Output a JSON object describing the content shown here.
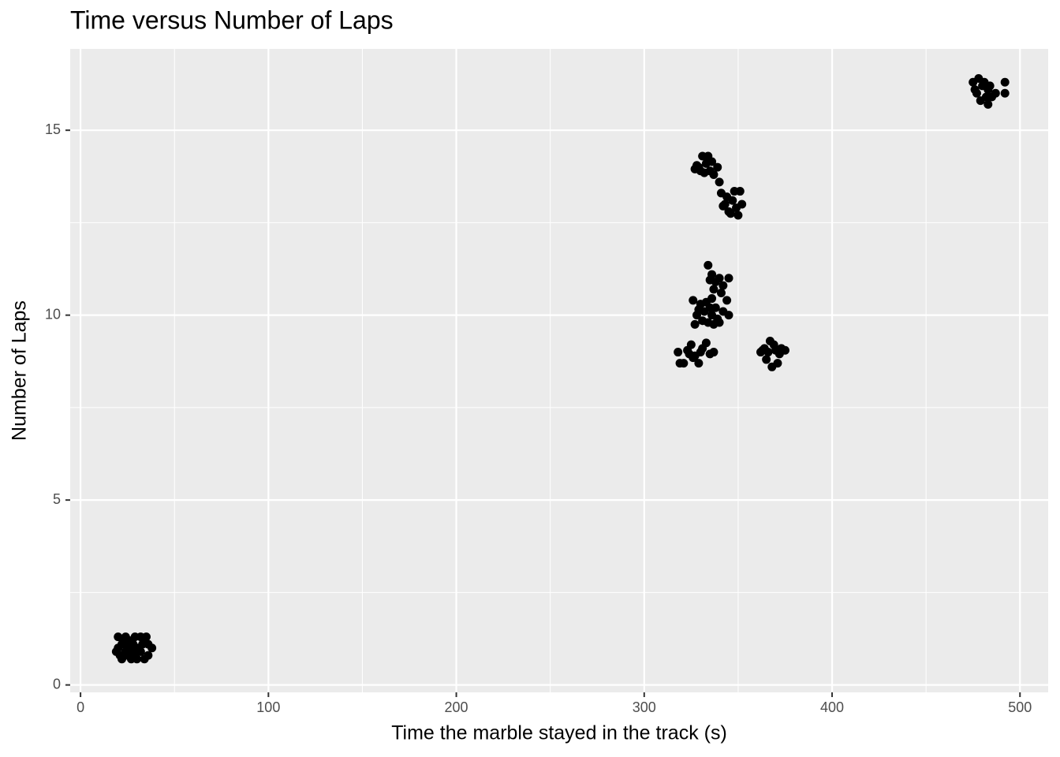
{
  "chart_data": {
    "type": "scatter",
    "title": "Time versus Number of Laps",
    "x_label": "Time the marble stayed in the track (s)",
    "y_label": "Number of Laps",
    "color": "#000000",
    "grid": true,
    "xlim": [
      -5.5,
      515
    ],
    "ylim": [
      -0.2,
      17.2
    ],
    "xticks": [
      0,
      100,
      200,
      300,
      400,
      500
    ],
    "yticks": [
      0,
      5,
      10,
      15
    ],
    "xminor": [
      50,
      150,
      250,
      350,
      450
    ],
    "yminor": [
      2.5,
      7.5,
      12.5
    ],
    "x": [
      20,
      22,
      24,
      26,
      28,
      30,
      32,
      34,
      36,
      38,
      21,
      23,
      25,
      27,
      29,
      31,
      33,
      35,
      20,
      22,
      24,
      26,
      28,
      30,
      32,
      34,
      19,
      36,
      27,
      25,
      475,
      477,
      479,
      481,
      483,
      485,
      483,
      487,
      492,
      492,
      476,
      480,
      482,
      478,
      484,
      327,
      329,
      331,
      333,
      335,
      337,
      339,
      340,
      330,
      334,
      336,
      332,
      328,
      341,
      343,
      345,
      347,
      349,
      351,
      350,
      346,
      344,
      348,
      342,
      352,
      334,
      336,
      338,
      340,
      342,
      345,
      344,
      337,
      335,
      341,
      326,
      328,
      330,
      332,
      334,
      336,
      338,
      340,
      342,
      345,
      327,
      331,
      333,
      335,
      337,
      339,
      329,
      336,
      318,
      319,
      321,
      323,
      325,
      327,
      329,
      331,
      333,
      335,
      337,
      326,
      324,
      330,
      362,
      364,
      365,
      367,
      368,
      370,
      371,
      373,
      375,
      369,
      366,
      372,
      363
    ],
    "values": [
      1.3,
      1.1,
      0.9,
      1.2,
      0.8,
      1.0,
      1.3,
      0.7,
      1.1,
      1.0,
      0.8,
      1.2,
      1.0,
      0.7,
      1.3,
      0.9,
      1.1,
      1.3,
      1.0,
      0.7,
      1.3,
      0.9,
      1.1,
      0.7,
      0.9,
      1.2,
      0.9,
      0.8,
      1.0,
      0.8,
      16.3,
      16.0,
      15.8,
      16.3,
      16.1,
      15.9,
      15.7,
      16.0,
      16.3,
      16.0,
      16.1,
      16.2,
      15.9,
      16.4,
      16.2,
      13.95,
      14.0,
      14.3,
      14.1,
      13.9,
      13.8,
      14.0,
      13.6,
      13.9,
      14.3,
      14.15,
      13.85,
      14.05,
      13.3,
      13.0,
      12.8,
      13.1,
      12.9,
      13.35,
      12.7,
      12.75,
      13.2,
      13.35,
      12.95,
      13.0,
      11.35,
      11.1,
      10.9,
      11.0,
      10.8,
      11.0,
      10.4,
      10.7,
      10.95,
      10.6,
      10.4,
      10.0,
      10.3,
      10.1,
      9.8,
      10.0,
      10.2,
      9.8,
      10.1,
      10.0,
      9.75,
      9.85,
      10.35,
      10.2,
      9.75,
      9.9,
      10.15,
      10.45,
      9.0,
      8.7,
      8.7,
      9.05,
      9.2,
      8.9,
      8.7,
      9.1,
      9.25,
      8.95,
      9.0,
      8.85,
      8.95,
      9.0,
      9.0,
      9.1,
      8.8,
      9.3,
      8.6,
      9.05,
      8.7,
      9.1,
      9.05,
      9.2,
      9.0,
      8.95,
      9.05
    ]
  }
}
